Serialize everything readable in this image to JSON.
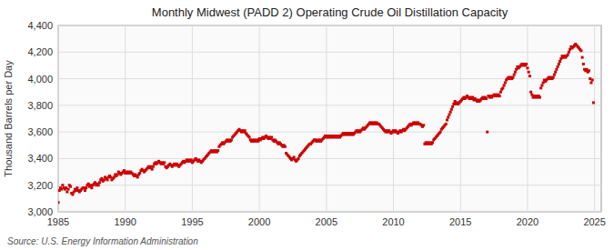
{
  "chart_data": {
    "type": "scatter",
    "title": "Monthly Midwest (PADD 2) Operating Crude Oil Distillation Capacity",
    "y_label": "Thousand Barrels per Day",
    "source": "Source: U.S. Energy Information Administration",
    "color": "#cc0000",
    "marker": "square",
    "grid": true,
    "xlim": [
      1985,
      2025.5
    ],
    "ylim": [
      3000,
      4400
    ],
    "xticks": [
      1985,
      1990,
      1995,
      2000,
      2005,
      2010,
      2015,
      2020,
      2025
    ],
    "yticks": [
      {
        "value": 3000,
        "label": "3,000"
      },
      {
        "value": 3200,
        "label": "3,200"
      },
      {
        "value": 3400,
        "label": "3,400"
      },
      {
        "value": 3600,
        "label": "3,600"
      },
      {
        "value": 3800,
        "label": "3,800"
      },
      {
        "value": 4000,
        "label": "4,000"
      },
      {
        "value": 4200,
        "label": "4,200"
      },
      {
        "value": 4400,
        "label": "4,400"
      }
    ],
    "x": [
      1985.0,
      1985.083,
      1985.167,
      1985.25,
      1985.333,
      1985.417,
      1985.5,
      1985.583,
      1985.667,
      1985.75,
      1985.833,
      1985.917,
      1986.0,
      1986.083,
      1986.167,
      1986.25,
      1986.333,
      1986.417,
      1986.5,
      1986.583,
      1986.667,
      1986.75,
      1986.833,
      1986.917,
      1987.0,
      1987.083,
      1987.167,
      1987.25,
      1987.333,
      1987.417,
      1987.5,
      1987.583,
      1987.667,
      1987.75,
      1987.833,
      1987.917,
      1988.0,
      1988.083,
      1988.167,
      1988.25,
      1988.333,
      1988.417,
      1988.5,
      1988.583,
      1988.667,
      1988.75,
      1988.833,
      1988.917,
      1989.0,
      1989.083,
      1989.167,
      1989.25,
      1989.333,
      1989.417,
      1989.5,
      1989.583,
      1989.667,
      1989.75,
      1989.833,
      1989.917,
      1990.0,
      1990.083,
      1990.167,
      1990.25,
      1990.333,
      1990.417,
      1990.5,
      1990.583,
      1990.667,
      1990.75,
      1990.833,
      1990.917,
      1991.0,
      1991.083,
      1991.167,
      1991.25,
      1991.333,
      1991.417,
      1991.5,
      1991.583,
      1991.667,
      1991.75,
      1991.833,
      1991.917,
      1992.0,
      1992.083,
      1992.167,
      1992.25,
      1992.333,
      1992.417,
      1992.5,
      1992.583,
      1992.667,
      1992.75,
      1992.833,
      1992.917,
      1993.0,
      1993.083,
      1993.167,
      1993.25,
      1993.333,
      1993.417,
      1993.5,
      1993.583,
      1993.667,
      1993.75,
      1993.833,
      1993.917,
      1994.0,
      1994.083,
      1994.167,
      1994.25,
      1994.333,
      1994.417,
      1994.5,
      1994.583,
      1994.667,
      1994.75,
      1994.833,
      1994.917,
      1995.0,
      1995.083,
      1995.167,
      1995.25,
      1995.333,
      1995.417,
      1995.5,
      1995.583,
      1995.667,
      1995.75,
      1995.833,
      1995.917,
      1996.0,
      1996.083,
      1996.167,
      1996.25,
      1996.333,
      1996.417,
      1996.5,
      1996.583,
      1996.667,
      1996.75,
      1996.833,
      1996.917,
      1997.0,
      1997.083,
      1997.167,
      1997.25,
      1997.333,
      1997.417,
      1997.5,
      1997.583,
      1997.667,
      1997.75,
      1997.833,
      1997.917,
      1998.0,
      1998.083,
      1998.167,
      1998.25,
      1998.333,
      1998.417,
      1998.5,
      1998.583,
      1998.667,
      1998.75,
      1998.833,
      1998.917,
      1999.0,
      1999.083,
      1999.167,
      1999.25,
      1999.333,
      1999.417,
      1999.5,
      1999.583,
      1999.667,
      1999.75,
      1999.833,
      1999.917,
      2000.0,
      2000.083,
      2000.167,
      2000.25,
      2000.333,
      2000.417,
      2000.5,
      2000.583,
      2000.667,
      2000.75,
      2000.833,
      2000.917,
      2001.0,
      2001.083,
      2001.167,
      2001.25,
      2001.333,
      2001.417,
      2001.5,
      2001.583,
      2001.667,
      2001.75,
      2001.833,
      2001.917,
      2002.0,
      2002.083,
      2002.167,
      2002.25,
      2002.333,
      2002.417,
      2002.5,
      2002.583,
      2002.667,
      2002.75,
      2002.833,
      2002.917,
      2003.0,
      2003.083,
      2003.167,
      2003.25,
      2003.333,
      2003.417,
      2003.5,
      2003.583,
      2003.667,
      2003.75,
      2003.833,
      2003.917,
      2004.0,
      2004.083,
      2004.167,
      2004.25,
      2004.333,
      2004.417,
      2004.5,
      2004.583,
      2004.667,
      2004.75,
      2004.833,
      2004.917,
      2005.0,
      2005.083,
      2005.167,
      2005.25,
      2005.333,
      2005.417,
      2005.5,
      2005.583,
      2005.667,
      2005.75,
      2005.833,
      2005.917,
      2006.0,
      2006.083,
      2006.167,
      2006.25,
      2006.333,
      2006.417,
      2006.5,
      2006.583,
      2006.667,
      2006.75,
      2006.833,
      2006.917,
      2007.0,
      2007.083,
      2007.167,
      2007.25,
      2007.333,
      2007.417,
      2007.5,
      2007.583,
      2007.667,
      2007.75,
      2007.833,
      2007.917,
      2008.0,
      2008.083,
      2008.167,
      2008.25,
      2008.333,
      2008.417,
      2008.5,
      2008.583,
      2008.667,
      2008.75,
      2008.833,
      2008.917,
      2009.0,
      2009.083,
      2009.167,
      2009.25,
      2009.333,
      2009.417,
      2009.5,
      2009.583,
      2009.667,
      2009.75,
      2009.833,
      2009.917,
      2010.0,
      2010.083,
      2010.167,
      2010.25,
      2010.333,
      2010.417,
      2010.5,
      2010.583,
      2010.667,
      2010.75,
      2010.833,
      2010.917,
      2011.0,
      2011.083,
      2011.167,
      2011.25,
      2011.333,
      2011.417,
      2011.5,
      2011.583,
      2011.667,
      2011.75,
      2011.833,
      2011.917,
      2012.0,
      2012.083,
      2012.167,
      2012.25,
      2012.333,
      2012.417,
      2012.5,
      2012.583,
      2012.667,
      2012.75,
      2012.833,
      2012.917,
      2013.0,
      2013.083,
      2013.167,
      2013.25,
      2013.333,
      2013.417,
      2013.5,
      2013.583,
      2013.667,
      2013.75,
      2013.833,
      2013.917,
      2014.0,
      2014.083,
      2014.167,
      2014.25,
      2014.333,
      2014.417,
      2014.5,
      2014.583,
      2014.667,
      2014.75,
      2014.833,
      2014.917,
      2015.0,
      2015.083,
      2015.167,
      2015.25,
      2015.333,
      2015.417,
      2015.5,
      2015.583,
      2015.667,
      2015.75,
      2015.833,
      2015.917,
      2016.0,
      2016.083,
      2016.167,
      2016.25,
      2016.333,
      2016.417,
      2016.5,
      2016.583,
      2016.667,
      2016.75,
      2016.833,
      2016.917,
      2017.0,
      2017.083,
      2017.167,
      2017.25,
      2017.333,
      2017.417,
      2017.5,
      2017.583,
      2017.667,
      2017.75,
      2017.833,
      2017.917,
      2018.0,
      2018.083,
      2018.167,
      2018.25,
      2018.333,
      2018.417,
      2018.5,
      2018.583,
      2018.667,
      2018.75,
      2018.833,
      2018.917,
      2019.0,
      2019.083,
      2019.167,
      2019.25,
      2019.333,
      2019.417,
      2019.5,
      2019.583,
      2019.667,
      2019.75,
      2019.833,
      2019.917,
      2020.0,
      2020.083,
      2020.167,
      2020.25,
      2020.333,
      2020.417,
      2020.5,
      2020.583,
      2020.667,
      2020.75,
      2020.833,
      2020.917,
      2021.0,
      2021.083,
      2021.167,
      2021.25,
      2021.333,
      2021.417,
      2021.5,
      2021.583,
      2021.667,
      2021.75,
      2021.833,
      2021.917,
      2022.0,
      2022.083,
      2022.167,
      2022.25,
      2022.333,
      2022.417,
      2022.5,
      2022.583,
      2022.667,
      2022.75,
      2022.833,
      2022.917,
      2023.0,
      2023.083,
      2023.167,
      2023.25,
      2023.333,
      2023.417,
      2023.5,
      2023.583,
      2023.667,
      2023.75,
      2023.833,
      2023.917,
      2024.0,
      2024.083,
      2024.167,
      2024.25,
      2024.333,
      2024.417,
      2024.5,
      2024.583,
      2024.667,
      2024.75,
      2024.833,
      2024.917
    ],
    "values": [
      3070,
      3160,
      3180,
      3170,
      3200,
      3180,
      3170,
      3180,
      3150,
      3170,
      3200,
      3190,
      3140,
      3130,
      3150,
      3170,
      3160,
      3180,
      3160,
      3150,
      3160,
      3170,
      3180,
      3180,
      3160,
      3180,
      3200,
      3210,
      3190,
      3200,
      3180,
      3200,
      3210,
      3220,
      3200,
      3210,
      3200,
      3220,
      3240,
      3250,
      3230,
      3240,
      3260,
      3250,
      3240,
      3260,
      3270,
      3260,
      3240,
      3250,
      3260,
      3280,
      3270,
      3280,
      3300,
      3290,
      3280,
      3290,
      3300,
      3310,
      3290,
      3300,
      3290,
      3300,
      3290,
      3300,
      3290,
      3280,
      3270,
      3280,
      3270,
      3260,
      3280,
      3290,
      3310,
      3320,
      3310,
      3300,
      3310,
      3320,
      3330,
      3340,
      3330,
      3340,
      3320,
      3340,
      3360,
      3370,
      3360,
      3370,
      3380,
      3370,
      3360,
      3370,
      3360,
      3370,
      3340,
      3330,
      3340,
      3350,
      3360,
      3350,
      3340,
      3350,
      3360,
      3350,
      3360,
      3350,
      3340,
      3350,
      3360,
      3370,
      3380,
      3370,
      3380,
      3390,
      3380,
      3390,
      3380,
      3390,
      3370,
      3380,
      3390,
      3400,
      3390,
      3380,
      3390,
      3380,
      3370,
      3380,
      3390,
      3400,
      3410,
      3420,
      3430,
      3440,
      3450,
      3460,
      3450,
      3460,
      3450,
      3460,
      3450,
      3460,
      3490,
      3500,
      3510,
      3520,
      3510,
      3520,
      3530,
      3540,
      3530,
      3540,
      3530,
      3540,
      3560,
      3570,
      3580,
      3590,
      3600,
      3610,
      3620,
      3610,
      3600,
      3610,
      3600,
      3610,
      3590,
      3580,
      3570,
      3560,
      3540,
      3530,
      3540,
      3530,
      3540,
      3530,
      3540,
      3530,
      3550,
      3540,
      3550,
      3560,
      3550,
      3560,
      3570,
      3560,
      3550,
      3560,
      3550,
      3560,
      3540,
      3530,
      3540,
      3530,
      3520,
      3510,
      3520,
      3510,
      3500,
      3490,
      3500,
      3490,
      3440,
      3430,
      3420,
      3410,
      3400,
      3390,
      3400,
      3410,
      3390,
      3380,
      3390,
      3400,
      3420,
      3430,
      3440,
      3450,
      3460,
      3470,
      3480,
      3490,
      3500,
      3510,
      3510,
      3520,
      3530,
      3540,
      3540,
      3530,
      3540,
      3530,
      3540,
      3530,
      3540,
      3550,
      3560,
      3570,
      3560,
      3570,
      3560,
      3570,
      3560,
      3570,
      3560,
      3570,
      3560,
      3570,
      3560,
      3570,
      3560,
      3570,
      3580,
      3590,
      3580,
      3590,
      3580,
      3590,
      3580,
      3590,
      3580,
      3590,
      3580,
      3590,
      3600,
      3610,
      3600,
      3610,
      3600,
      3610,
      3620,
      3630,
      3620,
      3630,
      3640,
      3650,
      3660,
      3670,
      3660,
      3670,
      3660,
      3670,
      3660,
      3670,
      3660,
      3660,
      3650,
      3640,
      3630,
      3620,
      3610,
      3600,
      3610,
      3600,
      3610,
      3600,
      3590,
      3600,
      3610,
      3600,
      3610,
      3600,
      3590,
      3600,
      3610,
      3600,
      3610,
      3620,
      3610,
      3620,
      3630,
      3640,
      3650,
      3660,
      3650,
      3660,
      3670,
      3660,
      3670,
      3660,
      3670,
      3660,
      3660,
      3650,
      3640,
      3650,
      3510,
      3520,
      3510,
      3520,
      3510,
      3520,
      3510,
      3520,
      3540,
      3550,
      3560,
      3570,
      3580,
      3590,
      3600,
      3620,
      3630,
      3640,
      3650,
      3660,
      3690,
      3710,
      3730,
      3750,
      3770,
      3790,
      3810,
      3830,
      3810,
      3820,
      3810,
      3820,
      3830,
      3840,
      3850,
      3860,
      3850,
      3860,
      3870,
      3860,
      3850,
      3860,
      3850,
      3860,
      3840,
      3850,
      3840,
      3830,
      3840,
      3830,
      3840,
      3850,
      3860,
      3850,
      3860,
      3850,
      3600,
      3870,
      3860,
      3870,
      3860,
      3870,
      3880,
      3870,
      3880,
      3870,
      3880,
      3870,
      3900,
      3920,
      3930,
      3950,
      3970,
      3990,
      4000,
      4010,
      4000,
      4010,
      4000,
      4010,
      4030,
      4050,
      4070,
      4090,
      4080,
      4090,
      4100,
      4110,
      4100,
      4110,
      4100,
      4110,
      4080,
      4050,
      4020,
      3900,
      3880,
      3860,
      3870,
      3860,
      3870,
      3860,
      3870,
      3860,
      3930,
      3950,
      3970,
      3990,
      3980,
      3990,
      4000,
      4010,
      4000,
      4010,
      4000,
      4010,
      4030,
      4050,
      4070,
      4090,
      4110,
      4130,
      4150,
      4170,
      4160,
      4170,
      4160,
      4170,
      4180,
      4200,
      4220,
      4240,
      4230,
      4240,
      4250,
      4260,
      4250,
      4240,
      4230,
      4220,
      4210,
      4160,
      4110,
      4070,
      4060,
      4070,
      4050,
      4060,
      4000,
      3970,
      3990,
      3820
    ]
  }
}
